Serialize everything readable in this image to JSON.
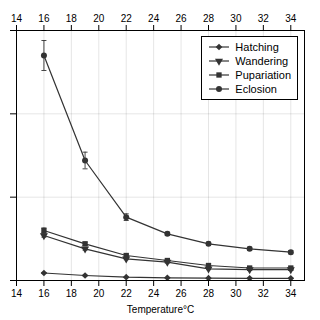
{
  "chart_data": {
    "type": "line",
    "x": [
      16,
      19,
      22,
      25,
      28,
      31,
      34
    ],
    "xlabel": "Temperature°C",
    "xlim": [
      14,
      35
    ],
    "xticks": [
      14,
      16,
      18,
      20,
      22,
      24,
      26,
      28,
      30,
      32,
      34
    ],
    "ylim": [
      0,
      1.5
    ],
    "yticks": [
      0,
      0.5,
      1,
      1.5
    ],
    "grid": true,
    "legend": "upper right",
    "tick_labels": "x",
    "series": [
      {
        "name": "Hatching",
        "color": "#333333",
        "marker": "diamond",
        "values": [
          0.045,
          0.03,
          0.02,
          0.016,
          0.014,
          0.013,
          0.013
        ],
        "errors": [
          0.003,
          0.002,
          0.001,
          0.001,
          0.001,
          0.001,
          0.001
        ]
      },
      {
        "name": "Wandering",
        "color": "#333333",
        "marker": "triangle_down",
        "values": [
          0.27,
          0.19,
          0.13,
          0.11,
          0.07,
          0.065,
          0.065
        ],
        "errors": [
          0.01,
          0.008,
          0.005,
          0.005,
          0.005,
          0.005,
          0.005
        ]
      },
      {
        "name": "Pupariation",
        "color": "#333333",
        "marker": "square",
        "values": [
          0.3,
          0.22,
          0.15,
          0.12,
          0.09,
          0.075,
          0.075
        ],
        "errors": [
          0.015,
          0.01,
          0.008,
          0.005,
          0.005,
          0.005,
          0.005
        ]
      },
      {
        "name": "Eclosion",
        "color": "#333333",
        "marker": "circle",
        "values": [
          1.35,
          0.72,
          0.38,
          0.28,
          0.22,
          0.19,
          0.17
        ],
        "errors": [
          0.09,
          0.05,
          0.02,
          0.01,
          0.01,
          0.01,
          0.01
        ]
      }
    ]
  }
}
